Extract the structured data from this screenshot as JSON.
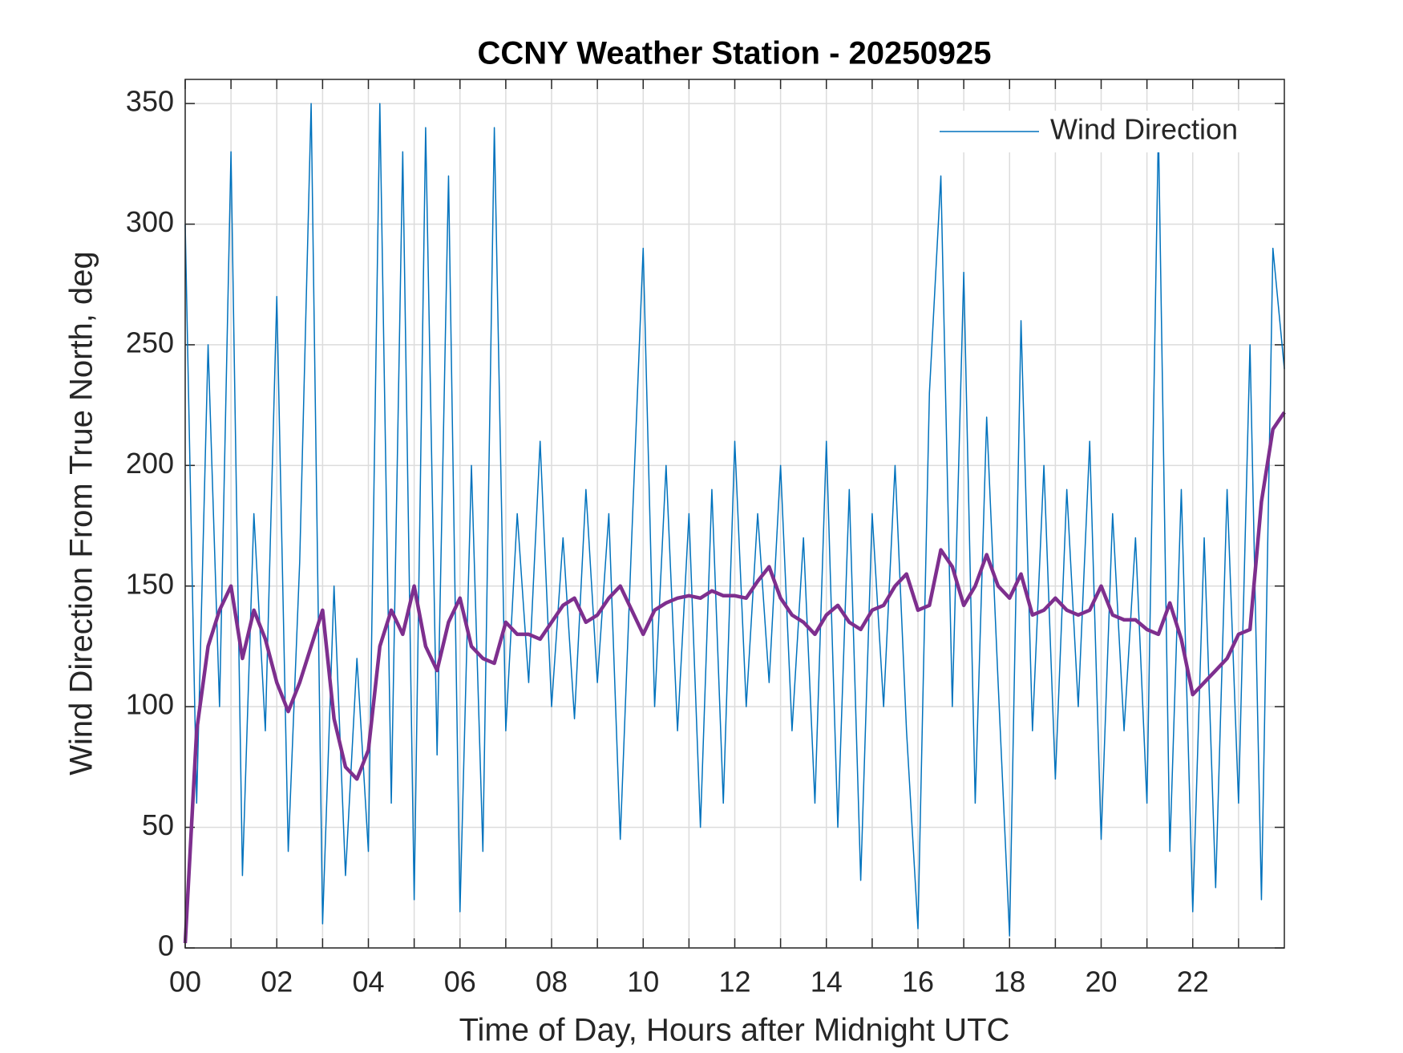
{
  "chart_data": {
    "type": "line",
    "title": "CCNY Weather Station - 20250925",
    "xlabel": "Time of Day, Hours after Midnight UTC",
    "ylabel": "Wind Direction From True North, deg",
    "xlim": [
      0,
      24
    ],
    "ylim": [
      0,
      360
    ],
    "xticks": [
      {
        "value": 0,
        "label": "00"
      },
      {
        "value": 2,
        "label": "02"
      },
      {
        "value": 4,
        "label": "04"
      },
      {
        "value": 6,
        "label": "06"
      },
      {
        "value": 8,
        "label": "08"
      },
      {
        "value": 10,
        "label": "10"
      },
      {
        "value": 12,
        "label": "12"
      },
      {
        "value": 14,
        "label": "14"
      },
      {
        "value": 16,
        "label": "16"
      },
      {
        "value": 18,
        "label": "18"
      },
      {
        "value": 20,
        "label": "20"
      },
      {
        "value": 22,
        "label": "22"
      }
    ],
    "xminorticks": [
      1,
      3,
      5,
      7,
      9,
      11,
      13,
      15,
      17,
      19,
      21,
      23
    ],
    "yticks": [
      0,
      50,
      100,
      150,
      200,
      250,
      300,
      350
    ],
    "grid": true,
    "legend": "upper right",
    "x": [
      0,
      0.25,
      0.5,
      0.75,
      1,
      1.25,
      1.5,
      1.75,
      2,
      2.25,
      2.5,
      2.75,
      3,
      3.25,
      3.5,
      3.75,
      4,
      4.25,
      4.5,
      4.75,
      5,
      5.25,
      5.5,
      5.75,
      6,
      6.25,
      6.5,
      6.75,
      7,
      7.25,
      7.5,
      7.75,
      8,
      8.25,
      8.5,
      8.75,
      9,
      9.25,
      9.5,
      9.75,
      10,
      10.25,
      10.5,
      10.75,
      11,
      11.25,
      11.5,
      11.75,
      12,
      12.25,
      12.5,
      12.75,
      13,
      13.25,
      13.5,
      13.75,
      14,
      14.25,
      14.5,
      14.75,
      15,
      15.25,
      15.5,
      15.75,
      16,
      16.25,
      16.5,
      16.75,
      17,
      17.25,
      17.5,
      17.75,
      18,
      18.25,
      18.5,
      18.75,
      19,
      19.25,
      19.5,
      19.75,
      20,
      20.25,
      20.5,
      20.75,
      21,
      21.25,
      21.5,
      21.75,
      22,
      22.25,
      22.5,
      22.75,
      23,
      23.25,
      23.5,
      23.75,
      24
    ],
    "series": [
      {
        "name": "Wind Direction",
        "color": "#0072bd",
        "width": 1.5,
        "legend": true,
        "values": [
          300,
          60,
          250,
          100,
          330,
          30,
          180,
          90,
          270,
          40,
          160,
          350,
          10,
          150,
          30,
          120,
          40,
          350,
          60,
          330,
          20,
          340,
          80,
          320,
          15,
          200,
          40,
          340,
          90,
          180,
          110,
          210,
          100,
          170,
          95,
          190,
          110,
          180,
          45,
          170,
          290,
          100,
          200,
          90,
          180,
          50,
          190,
          60,
          210,
          100,
          180,
          110,
          200,
          90,
          170,
          60,
          210,
          50,
          190,
          28,
          180,
          100,
          200,
          90,
          8,
          230,
          320,
          100,
          280,
          60,
          220,
          110,
          5,
          260,
          90,
          200,
          70,
          190,
          100,
          210,
          45,
          180,
          90,
          170,
          60,
          340,
          40,
          190,
          15,
          170,
          25,
          190,
          60,
          250,
          20,
          290,
          240
        ]
      },
      {
        "color": "#7e2f8e",
        "width": 4.5,
        "legend": false,
        "values": [
          2,
          90,
          125,
          140,
          150,
          120,
          140,
          128,
          110,
          98,
          110,
          125,
          140,
          95,
          75,
          70,
          82,
          125,
          140,
          130,
          150,
          125,
          115,
          135,
          145,
          125,
          120,
          118,
          135,
          130,
          130,
          128,
          135,
          142,
          145,
          135,
          138,
          145,
          150,
          140,
          130,
          140,
          143,
          145,
          146,
          145,
          148,
          146,
          146,
          145,
          152,
          158,
          145,
          138,
          135,
          130,
          138,
          142,
          135,
          132,
          140,
          142,
          150,
          155,
          140,
          142,
          165,
          158,
          142,
          150,
          163,
          150,
          145,
          155,
          138,
          140,
          145,
          140,
          138,
          140,
          150,
          138,
          136,
          136,
          132,
          130,
          143,
          128,
          105,
          110,
          115,
          120,
          130,
          132,
          185,
          215,
          222
        ]
      }
    ]
  }
}
